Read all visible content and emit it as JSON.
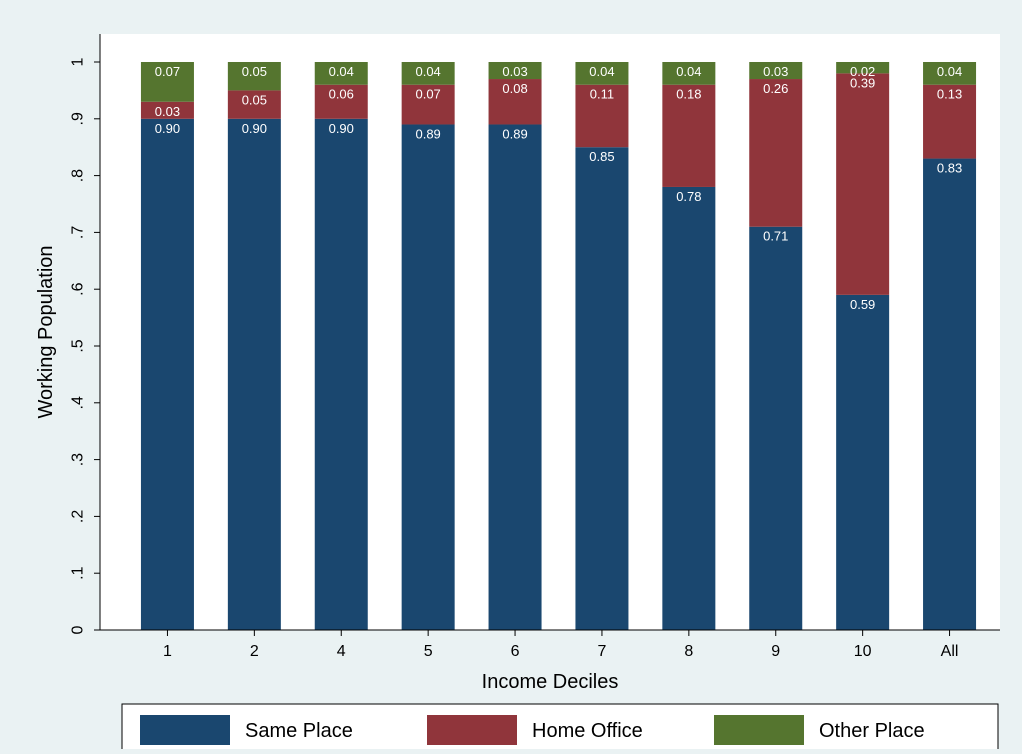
{
  "chart_data": {
    "type": "bar",
    "stacked": true,
    "categories": [
      "1",
      "2",
      "4",
      "5",
      "6",
      "7",
      "8",
      "9",
      "10",
      "All"
    ],
    "series": [
      {
        "name": "Same Place",
        "color": "#1a476f",
        "values": [
          0.9,
          0.9,
          0.9,
          0.89,
          0.89,
          0.85,
          0.78,
          0.71,
          0.59,
          0.83
        ]
      },
      {
        "name": "Home Office",
        "color": "#90353b",
        "values": [
          0.03,
          0.05,
          0.06,
          0.07,
          0.08,
          0.11,
          0.18,
          0.26,
          0.39,
          0.13
        ]
      },
      {
        "name": "Other Place",
        "color": "#55752f",
        "values": [
          0.07,
          0.05,
          0.04,
          0.04,
          0.03,
          0.04,
          0.04,
          0.03,
          0.02,
          0.04
        ]
      }
    ],
    "data_labels": [
      [
        "0.90",
        "0.90",
        "0.90",
        "0.89",
        "0.89",
        "0.85",
        "0.78",
        "0.71",
        "0.59",
        "0.83"
      ],
      [
        "0.03",
        "0.05",
        "0.06",
        "0.07",
        "0.08",
        "0.11",
        "0.18",
        "0.26",
        "0.39",
        "0.13"
      ],
      [
        "0.07",
        "0.05",
        "0.04",
        "0.04",
        "0.03",
        "0.04",
        "0.04",
        "0.03",
        "0.02",
        "0.04"
      ]
    ],
    "xlabel": "Income Deciles",
    "ylabel": "Working Population",
    "ylim": [
      0,
      1
    ],
    "yticks": [
      0,
      0.1,
      0.2,
      0.3,
      0.4,
      0.5,
      0.6,
      0.7,
      0.8,
      0.9,
      1
    ],
    "ytick_labels": [
      "0",
      ".1",
      ".2",
      ".3",
      ".4",
      ".5",
      ".6",
      ".7",
      ".8",
      ".9",
      "1"
    ],
    "grid": false,
    "legend_position": "bottom",
    "plot_background": "#ffffff",
    "page_background": "#eaf2f3"
  }
}
